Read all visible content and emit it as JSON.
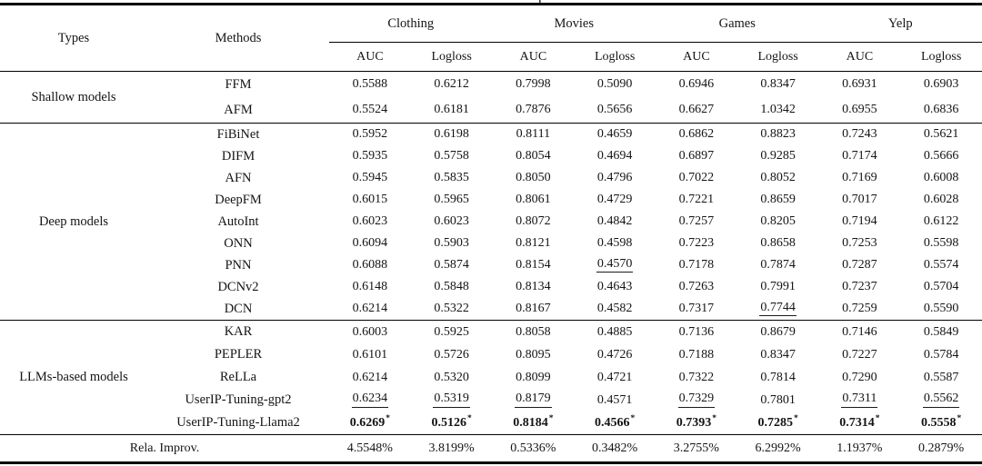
{
  "page": {
    "caption_remnant": "p"
  },
  "table": {
    "headers": {
      "types": "Types",
      "methods": "Methods"
    },
    "datasets": [
      "Clothing",
      "Movies",
      "Games",
      "Yelp"
    ],
    "metrics": [
      "AUC",
      "Logloss"
    ],
    "groups": [
      {
        "type": "Shallow models",
        "rows": [
          {
            "method": "FFM",
            "values": [
              "0.5588",
              "0.6212",
              "0.7998",
              "0.5090",
              "0.6946",
              "0.8347",
              "0.6931",
              "0.6903"
            ]
          },
          {
            "method": "AFM",
            "values": [
              "0.5524",
              "0.6181",
              "0.7876",
              "0.5656",
              "0.6627",
              "1.0342",
              "0.6955",
              "0.6836"
            ]
          }
        ]
      },
      {
        "type": "Deep models",
        "rows": [
          {
            "method": "FiBiNet",
            "values": [
              "0.5952",
              "0.6198",
              "0.8111",
              "0.4659",
              "0.6862",
              "0.8823",
              "0.7243",
              "0.5621"
            ]
          },
          {
            "method": "DIFM",
            "values": [
              "0.5935",
              "0.5758",
              "0.8054",
              "0.4694",
              "0.6897",
              "0.9285",
              "0.7174",
              "0.5666"
            ]
          },
          {
            "method": "AFN",
            "values": [
              "0.5945",
              "0.5835",
              "0.8050",
              "0.4796",
              "0.7022",
              "0.8052",
              "0.7169",
              "0.6008"
            ]
          },
          {
            "method": "DeepFM",
            "values": [
              "0.6015",
              "0.5965",
              "0.8061",
              "0.4729",
              "0.7221",
              "0.8659",
              "0.7017",
              "0.6028"
            ]
          },
          {
            "method": "AutoInt",
            "values": [
              "0.6023",
              "0.6023",
              "0.8072",
              "0.4842",
              "0.7257",
              "0.8205",
              "0.7194",
              "0.6122"
            ]
          },
          {
            "method": "ONN",
            "values": [
              "0.6094",
              "0.5903",
              "0.8121",
              "0.4598",
              "0.7223",
              "0.8658",
              "0.7253",
              "0.5598"
            ]
          },
          {
            "method": "PNN",
            "values": [
              "0.6088",
              "0.5874",
              "0.8154",
              {
                "v": "0.4570",
                "u": true
              },
              "0.7178",
              "0.7874",
              "0.7287",
              "0.5574"
            ]
          },
          {
            "method": "DCNv2",
            "values": [
              "0.6148",
              "0.5848",
              "0.8134",
              "0.4643",
              "0.7263",
              "0.7991",
              "0.7237",
              "0.5704"
            ]
          },
          {
            "method": "DCN",
            "values": [
              "0.6214",
              "0.5322",
              "0.8167",
              "0.4582",
              "0.7317",
              {
                "v": "0.7744",
                "u": true
              },
              "0.7259",
              "0.5590"
            ]
          }
        ]
      },
      {
        "type": "LLMs-based models",
        "rows": [
          {
            "method": "KAR",
            "values": [
              "0.6003",
              "0.5925",
              "0.8058",
              "0.4885",
              "0.7136",
              "0.8679",
              "0.7146",
              "0.5849"
            ]
          },
          {
            "method": "PEPLER",
            "values": [
              "0.6101",
              "0.5726",
              "0.8095",
              "0.4726",
              "0.7188",
              "0.8347",
              "0.7227",
              "0.5784"
            ]
          },
          {
            "method": "ReLLa",
            "values": [
              "0.6214",
              "0.5320",
              "0.8099",
              "0.4721",
              "0.7322",
              "0.7814",
              "0.7290",
              "0.5587"
            ]
          },
          {
            "method": "UserIP-Tuning-gpt2",
            "values": [
              {
                "v": "0.6234",
                "u": true
              },
              {
                "v": "0.5319",
                "u": true
              },
              {
                "v": "0.8179",
                "u": true
              },
              "0.4571",
              {
                "v": "0.7329",
                "u": true
              },
              "0.7801",
              {
                "v": "0.7311",
                "u": true
              },
              {
                "v": "0.5562",
                "u": true
              }
            ]
          },
          {
            "method": "UserIP-Tuning-Llama2",
            "values": [
              {
                "v": "0.6269",
                "b": true,
                "s": true
              },
              {
                "v": "0.5126",
                "b": true,
                "s": true
              },
              {
                "v": "0.8184",
                "b": true,
                "s": true
              },
              {
                "v": "0.4566",
                "b": true,
                "s": true
              },
              {
                "v": "0.7393",
                "b": true,
                "s": true
              },
              {
                "v": "0.7285",
                "b": true,
                "s": true
              },
              {
                "v": "0.7314",
                "b": true,
                "s": true
              },
              {
                "v": "0.5558",
                "b": true,
                "s": true
              }
            ]
          }
        ]
      }
    ],
    "footer": {
      "label": "Rela. Improv.",
      "values": [
        "4.5548%",
        "3.8199%",
        "0.5336%",
        "0.3482%",
        "3.2755%",
        "6.2992%",
        "1.1937%",
        "0.2879%"
      ]
    }
  }
}
